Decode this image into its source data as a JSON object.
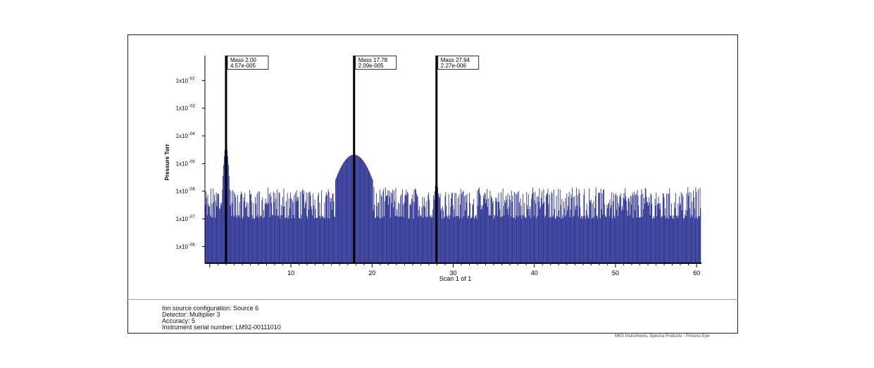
{
  "chart_data": {
    "type": "bar",
    "title": "",
    "xlabel": "Scan 1 of 1",
    "ylabel": "Pressure Torr",
    "xlim": [
      -0.6,
      60.6
    ],
    "ylim_log10": [
      -8.6,
      -1.1
    ],
    "y_scale": "log",
    "x_ticks": [
      10,
      20,
      30,
      40,
      50,
      60
    ],
    "y_ticks": [
      {
        "exp": -2,
        "label": "1x10",
        "sup": "-02"
      },
      {
        "exp": -3,
        "label": "1x10",
        "sup": "-03"
      },
      {
        "exp": -4,
        "label": "1x10",
        "sup": "-04"
      },
      {
        "exp": -5,
        "label": "1x10",
        "sup": "-05"
      },
      {
        "exp": -6,
        "label": "1x10",
        "sup": "-06"
      },
      {
        "exp": -7,
        "label": "1x10",
        "sup": "-07"
      },
      {
        "exp": -8,
        "label": "1x10",
        "sup": "-08"
      }
    ],
    "bar_color": "#2f3694",
    "peaks": [
      {
        "mass": 2.0,
        "pressure": 4.57e-05,
        "label1": "Mass 2.00",
        "label2": "4.57e-005"
      },
      {
        "mass": 17.78,
        "pressure": 2.09e-05,
        "label1": "Mass 17.78",
        "label2": "2.09e-005"
      },
      {
        "mass": 27.94,
        "pressure": 2.27e-06,
        "label1": "Mass 27.94",
        "label2": "2.27e-006"
      }
    ],
    "noise_floor": 1e-07,
    "noise_ceiling": 1e-06
  },
  "info": {
    "line1": "Ion source configuration: Source 6",
    "line2": "Detector: Multiplier 3",
    "line3": "Accuracy: 5",
    "line4": "Instrument serial number: LM92-00111010"
  },
  "credit": "MKS Instruments, Spectra Products - Process Eye"
}
